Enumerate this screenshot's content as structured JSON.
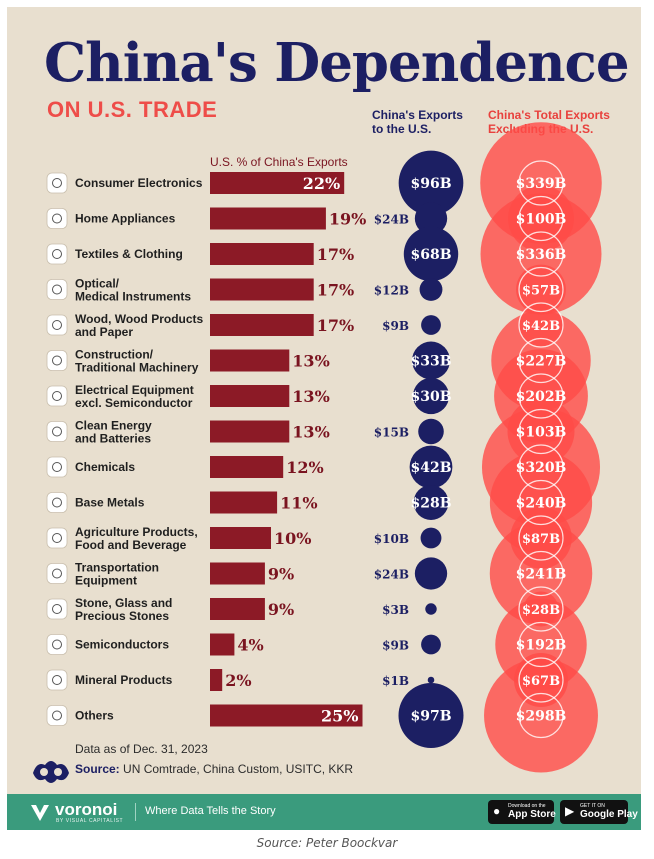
{
  "title": "China's Dependence",
  "subtitle": "ON U.S. TRADE",
  "headers": {
    "pct": "U.S. % of China's Exports",
    "exports_line1": "China's Exports",
    "exports_line2": "to the U.S.",
    "total_line1": "China's Total Exports",
    "total_line2": "Excluding the U.S."
  },
  "footer": {
    "date_note": "Data as of Dec. 31, 2023",
    "source_label": "Source:",
    "source_text": "UN Comtrade, China Custom, USITC, KKR"
  },
  "bottom_bar": {
    "brand": "voronoi",
    "brand_sub": "BY VISUAL CAPITALIST",
    "tagline": "Where Data Tells the Story",
    "app_store_small": "Download on the",
    "app_store_big": "App Store",
    "google_small": "GET IT ON",
    "google_big": "Google Play"
  },
  "caption": "Source: Peter Boockvar",
  "colors": {
    "navy": "#1c1f63",
    "bar": "#8c1a26",
    "coral": "#ff4b47",
    "background": "#e8dfcf",
    "brand_green": "#3a9b7d"
  },
  "chart_data": {
    "type": "bar",
    "categories": [
      [
        "Consumer Electronics"
      ],
      [
        "Home Appliances"
      ],
      [
        "Textiles & Clothing"
      ],
      [
        "Optical/",
        "Medical Instruments"
      ],
      [
        "Wood, Wood Products",
        "and Paper"
      ],
      [
        "Construction/",
        "Traditional Machinery"
      ],
      [
        "Electrical Equipment",
        "excl. Semiconductor"
      ],
      [
        "Clean Energy",
        "and Batteries"
      ],
      [
        "Chemicals"
      ],
      [
        "Base Metals"
      ],
      [
        "Agriculture Products,",
        "Food and Beverage"
      ],
      [
        "Transportation",
        "Equipment"
      ],
      [
        "Stone, Glass and",
        "Precious Stones"
      ],
      [
        "Semiconductors"
      ],
      [
        "Mineral Products"
      ],
      [
        "Others"
      ]
    ],
    "icons": [
      "tv-icon",
      "sofa-icon",
      "shirt-icon",
      "wheelchair-icon",
      "logs-icon",
      "crane-icon",
      "circuit-icon",
      "battery-icon",
      "atom-icon",
      "metal-bars-icon",
      "wheat-can-icon",
      "truck-icon",
      "window-icon",
      "chip-icon",
      "rocks-icon",
      "box-icon"
    ],
    "series": [
      {
        "name": "U.S. % of China's Exports",
        "values": [
          22,
          19,
          17,
          17,
          17,
          13,
          13,
          13,
          12,
          11,
          10,
          9,
          9,
          4,
          2,
          25
        ],
        "labels": [
          "22%",
          "19%",
          "17%",
          "17%",
          "17%",
          "13%",
          "13%",
          "13%",
          "12%",
          "11%",
          "10%",
          "9%",
          "9%",
          "4%",
          "2%",
          "25%"
        ]
      },
      {
        "name": "China's Exports to the U.S.",
        "values": [
          96,
          24,
          68,
          12,
          9,
          33,
          30,
          15,
          42,
          28,
          10,
          24,
          3,
          9,
          1,
          97
        ],
        "labels": [
          "$96B",
          "$24B",
          "$68B",
          "$12B",
          "$9B",
          "$33B",
          "$30B",
          "$15B",
          "$42B",
          "$28B",
          "$10B",
          "$24B",
          "$3B",
          "$9B",
          "$1B",
          "$97B"
        ]
      },
      {
        "name": "China's Total Exports Excluding the U.S.",
        "values": [
          339,
          100,
          336,
          57,
          42,
          227,
          202,
          103,
          320,
          240,
          87,
          241,
          28,
          192,
          67,
          298
        ],
        "labels": [
          "$339B",
          "$100B",
          "$336B",
          "$57B",
          "$42B",
          "$227B",
          "$202B",
          "$103B",
          "$320B",
          "$240B",
          "$87B",
          "$241B",
          "$28B",
          "$192B",
          "$67B",
          "$298B"
        ]
      }
    ]
  }
}
